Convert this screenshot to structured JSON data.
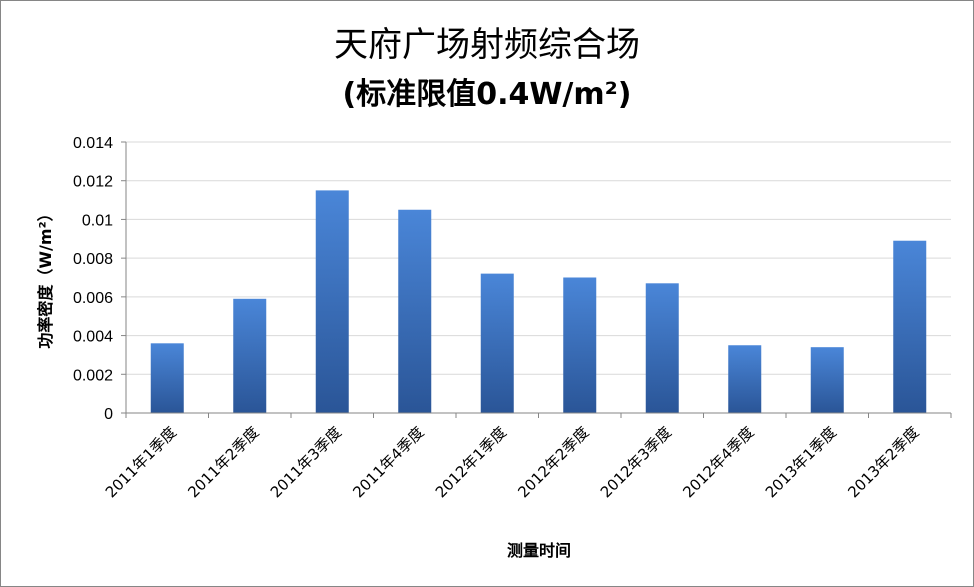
{
  "chart_data": {
    "type": "bar",
    "title": "天府广场射频综合场",
    "subtitle": "(标准限值0.4W/m²)",
    "xlabel": "测量时间",
    "ylabel": "功率密度（W/m²）",
    "categories": [
      "2011年1季度",
      "2011年2季度",
      "2011年3季度",
      "2011年4季度",
      "2012年1季度",
      "2012年2季度",
      "2012年3季度",
      "2012年4季度",
      "2013年1季度",
      "2013年2季度"
    ],
    "values": [
      0.0036,
      0.0059,
      0.0115,
      0.0105,
      0.0072,
      0.007,
      0.0067,
      0.0035,
      0.0034,
      0.0089
    ],
    "ylim": [
      0,
      0.014
    ],
    "yticks": [
      "0",
      "0.002",
      "0.004",
      "0.006",
      "0.008",
      "0.01",
      "0.012",
      "0.014"
    ],
    "grid": true,
    "legend": "none",
    "bar_color_top": "#4a86d8",
    "bar_color_bottom": "#2a5597"
  }
}
